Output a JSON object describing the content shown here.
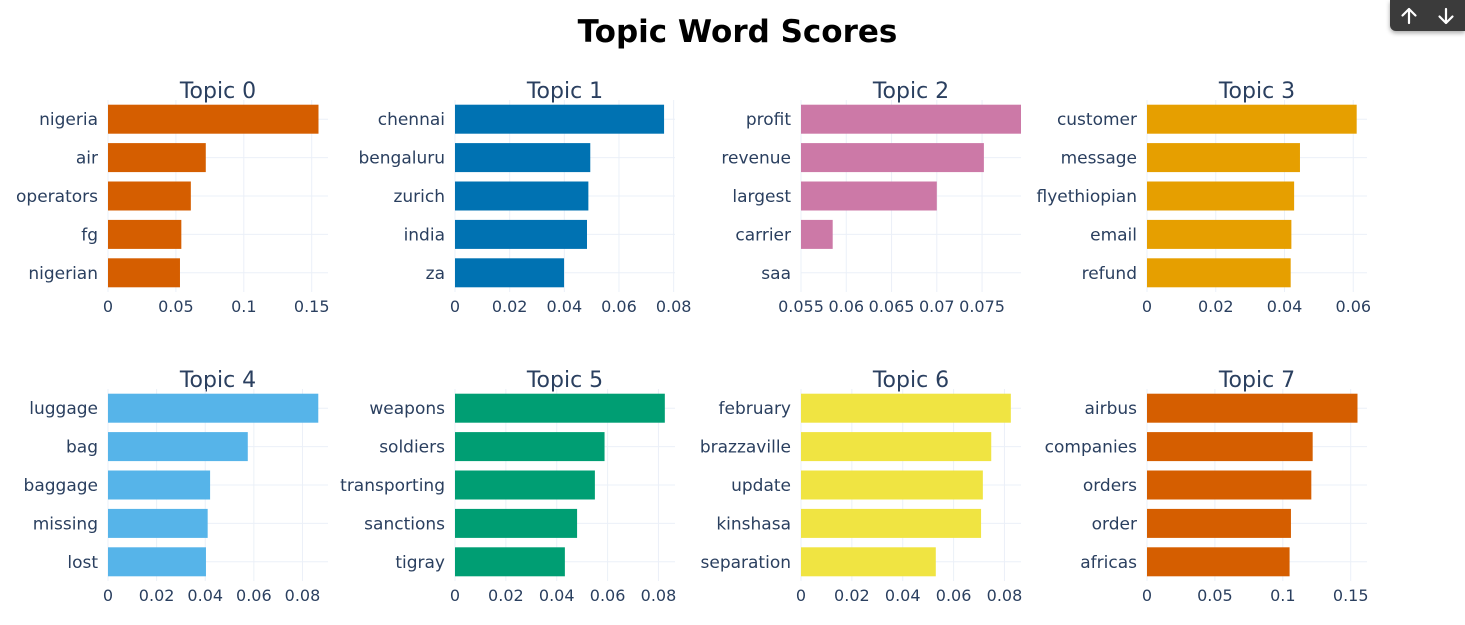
{
  "title": "Topic Word Scores",
  "nav": {
    "up_icon": "arrow-up-icon",
    "down_icon": "arrow-down-icon"
  },
  "chart_data": [
    {
      "type": "bar",
      "orientation": "horizontal",
      "title": "Topic 0",
      "color": "#D55E00",
      "categories": [
        "nigeria",
        "air",
        "operators",
        "fg",
        "nigerian"
      ],
      "values": [
        0.155,
        0.072,
        0.061,
        0.054,
        0.053
      ],
      "xlim": [
        0,
        0.162
      ],
      "xticks": [
        0,
        0.05,
        0.1,
        0.15
      ],
      "xtick_labels": [
        "0",
        "0.05",
        "0.1",
        "0.15"
      ]
    },
    {
      "type": "bar",
      "orientation": "horizontal",
      "title": "Topic 1",
      "color": "#0072B2",
      "categories": [
        "chennai",
        "bengaluru",
        "zurich",
        "india",
        "za"
      ],
      "values": [
        0.0765,
        0.0495,
        0.0488,
        0.0483,
        0.0399
      ],
      "xlim": [
        0,
        0.0805
      ],
      "xticks": [
        0,
        0.02,
        0.04,
        0.06,
        0.08
      ],
      "xtick_labels": [
        "0",
        "0.02",
        "0.04",
        "0.06",
        "0.08"
      ]
    },
    {
      "type": "bar",
      "orientation": "horizontal",
      "title": "Topic 2",
      "color": "#CC79A7",
      "categories": [
        "profit",
        "revenue",
        "largest",
        "carrier",
        "saa"
      ],
      "values": [
        0.0793,
        0.0752,
        0.07,
        0.0585,
        0.055
      ],
      "xlim": [
        0.055,
        0.0793
      ],
      "xticks": [
        0.055,
        0.06,
        0.065,
        0.07,
        0.075
      ],
      "xtick_labels": [
        "0.055",
        "0.06",
        "0.065",
        "0.07",
        "0.075"
      ]
    },
    {
      "type": "bar",
      "orientation": "horizontal",
      "title": "Topic 3",
      "color": "#E69F00",
      "categories": [
        "customer",
        "message",
        "flyethiopian",
        "email",
        "refund"
      ],
      "values": [
        0.061,
        0.0445,
        0.0428,
        0.042,
        0.0418
      ],
      "xlim": [
        0,
        0.064
      ],
      "xticks": [
        0,
        0.02,
        0.04,
        0.06
      ],
      "xtick_labels": [
        "0",
        "0.02",
        "0.04",
        "0.06"
      ]
    },
    {
      "type": "bar",
      "orientation": "horizontal",
      "title": "Topic 4",
      "color": "#56B4E9",
      "categories": [
        "luggage",
        "bag",
        "baggage",
        "missing",
        "lost"
      ],
      "values": [
        0.0865,
        0.0575,
        0.042,
        0.041,
        0.0403
      ],
      "xlim": [
        0,
        0.0905
      ],
      "xticks": [
        0,
        0.02,
        0.04,
        0.06,
        0.08
      ],
      "xtick_labels": [
        "0",
        "0.02",
        "0.04",
        "0.06",
        "0.08"
      ]
    },
    {
      "type": "bar",
      "orientation": "horizontal",
      "title": "Topic 5",
      "color": "#009E73",
      "categories": [
        "weapons",
        "soldiers",
        "transporting",
        "sanctions",
        "tigray"
      ],
      "values": [
        0.0825,
        0.0588,
        0.055,
        0.048,
        0.0432
      ],
      "xlim": [
        0,
        0.0865
      ],
      "xticks": [
        0,
        0.02,
        0.04,
        0.06,
        0.08
      ],
      "xtick_labels": [
        "0",
        "0.02",
        "0.04",
        "0.06",
        "0.08"
      ]
    },
    {
      "type": "bar",
      "orientation": "horizontal",
      "title": "Topic 6",
      "color": "#F0E442",
      "categories": [
        "february",
        "brazzaville",
        "update",
        "kinshasa",
        "separation"
      ],
      "values": [
        0.0825,
        0.0748,
        0.0715,
        0.0708,
        0.053
      ],
      "xlim": [
        0,
        0.0865
      ],
      "xticks": [
        0,
        0.02,
        0.04,
        0.06,
        0.08
      ],
      "xtick_labels": [
        "0",
        "0.02",
        "0.04",
        "0.06",
        "0.08"
      ]
    },
    {
      "type": "bar",
      "orientation": "horizontal",
      "title": "Topic 7",
      "color": "#D55E00",
      "categories": [
        "airbus",
        "companies",
        "orders",
        "order",
        "africas"
      ],
      "values": [
        0.155,
        0.122,
        0.121,
        0.106,
        0.105
      ],
      "xlim": [
        0,
        0.162
      ],
      "xticks": [
        0,
        0.05,
        0.1,
        0.15
      ],
      "xtick_labels": [
        "0",
        "0.05",
        "0.1",
        "0.15"
      ]
    }
  ]
}
